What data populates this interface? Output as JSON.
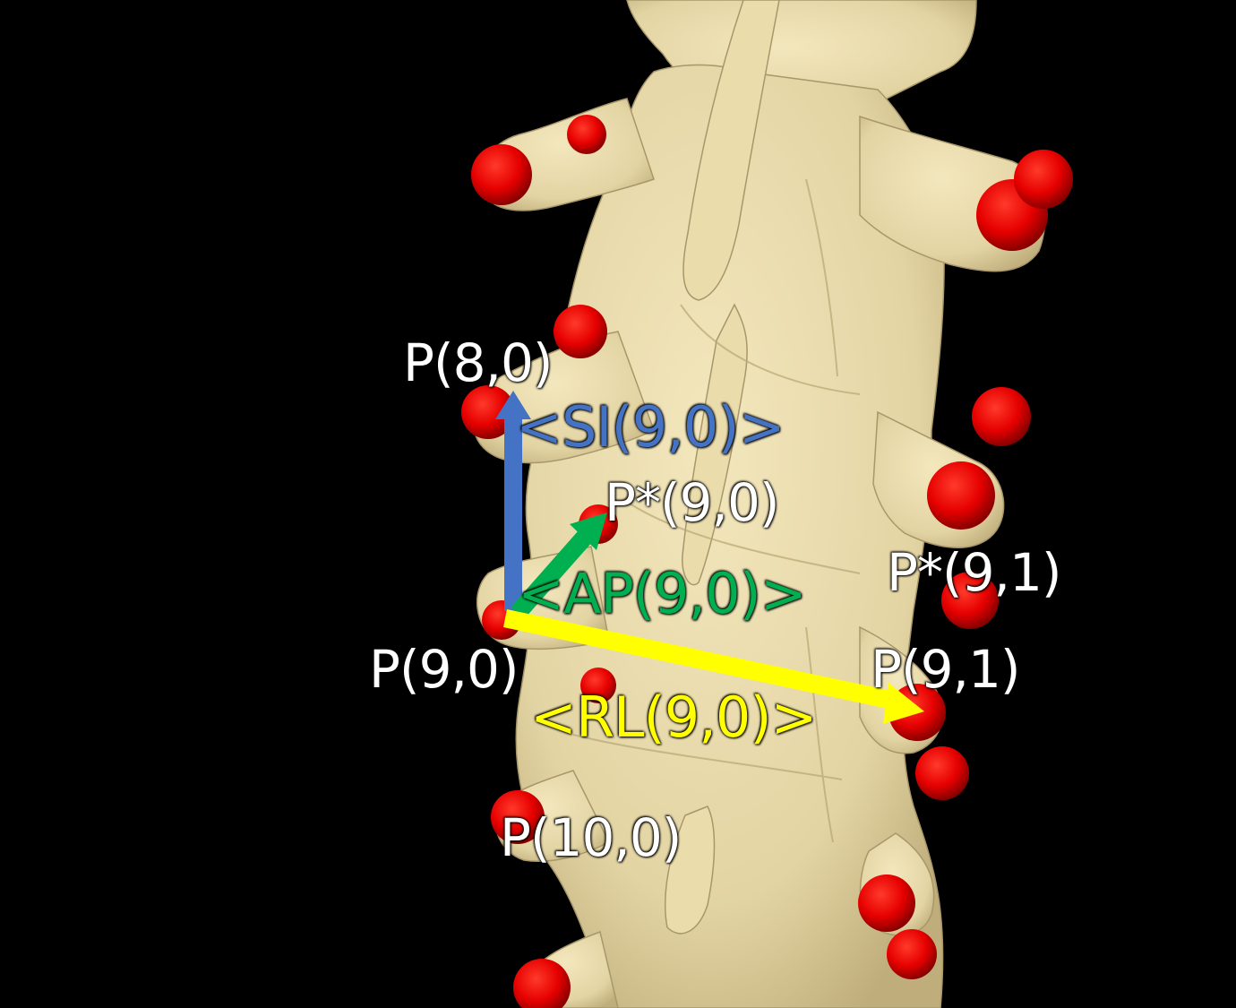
{
  "colors": {
    "background": "#000000",
    "bone": "#e9dbac",
    "bone_shadow": "#b9a978",
    "landmark": "#e60000",
    "si_vector": "#4472c4",
    "ap_vector": "#00b050",
    "rl_vector": "#ffff00",
    "text": "#ffffff"
  },
  "labels": {
    "p8_0": "P(8,0)",
    "si": "<SI(9,0)>",
    "p_star_9_0": "P*(9,0)",
    "p_star_9_1": "P*(9,1)",
    "ap": "<AP(9,0)>",
    "p9_0": "P(9,0)",
    "p9_1": "P(9,1)",
    "rl": "<RL(9,0)>",
    "p10_0": "P(10,0)"
  }
}
